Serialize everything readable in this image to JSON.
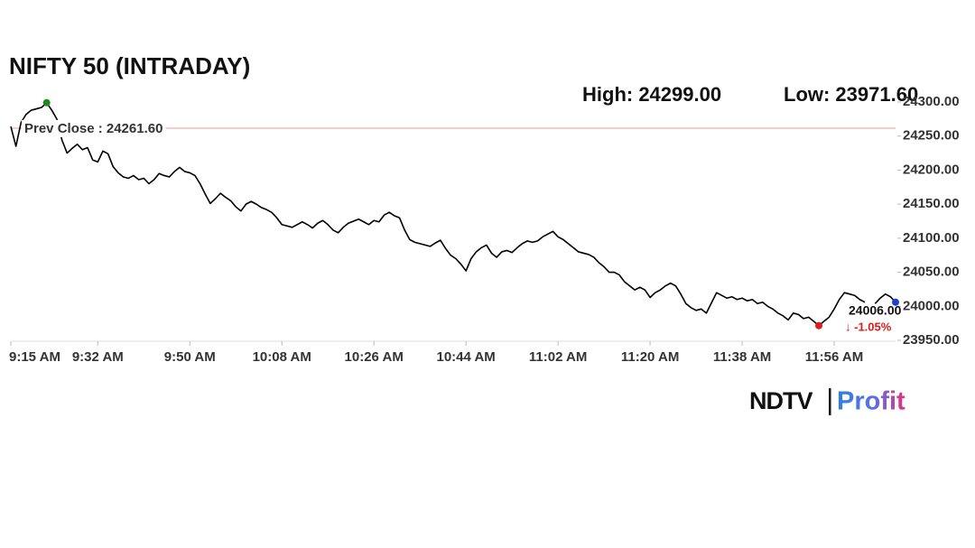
{
  "chart_data": {
    "type": "line",
    "title": "NIFTY 50 (INTRADAY)",
    "high_text": "High: 24299.00",
    "low_text": "Low: 23971.60",
    "prev_close": {
      "value": 24261.6,
      "label": "Prev Close : 24261.60",
      "color": "#f19a9a"
    },
    "last_label": "24006.00",
    "change_label": "↓ -1.05%",
    "change_color": "#e01b1b",
    "high_color": "#1e8a1e",
    "low_color": "#e01b1b",
    "last_color": "#1f3fcf",
    "brand": {
      "left": "NDTV",
      "right": "Profit"
    },
    "categories": [
      "9:15 AM",
      null,
      null,
      null,
      null,
      null,
      null,
      null,
      null,
      null,
      null,
      null,
      null,
      null,
      null,
      null,
      null,
      "9:32 AM",
      null,
      null,
      null,
      null,
      null,
      null,
      null,
      null,
      null,
      null,
      null,
      null,
      null,
      null,
      null,
      null,
      null,
      "9:50 AM",
      null,
      null,
      null,
      null,
      null,
      null,
      null,
      null,
      null,
      null,
      null,
      null,
      null,
      null,
      null,
      null,
      null,
      "10:08 AM",
      null,
      null,
      null,
      null,
      null,
      null,
      null,
      null,
      null,
      null,
      null,
      null,
      null,
      null,
      null,
      null,
      null,
      "10:26 AM",
      null,
      null,
      null,
      null,
      null,
      null,
      null,
      null,
      null,
      null,
      null,
      null,
      null,
      null,
      null,
      null,
      null,
      "10:44 AM",
      null,
      null,
      null,
      null,
      null,
      null,
      null,
      null,
      null,
      null,
      null,
      null,
      null,
      null,
      null,
      null,
      null,
      "11:02 AM",
      null,
      null,
      null,
      null,
      null,
      null,
      null,
      null,
      null,
      null,
      null,
      null,
      null,
      null,
      null,
      null,
      null,
      "11:20 AM",
      null,
      null,
      null,
      null,
      null,
      null,
      null,
      null,
      null,
      null,
      null,
      null,
      null,
      null,
      null,
      null,
      null,
      "11:38 AM",
      null,
      null,
      null,
      null,
      null,
      null,
      null,
      null,
      null,
      null,
      null,
      null,
      null,
      null,
      null,
      null,
      null,
      "11:56 AM",
      null,
      null,
      null,
      null,
      null,
      null,
      null,
      null,
      null,
      null,
      null,
      null
    ],
    "series": [
      {
        "name": "NIFTY 50",
        "color": "#000000",
        "values": [
          24264,
          24235,
          24270,
          24282,
          24288,
          24290,
          24292,
          24299,
          24288,
          24275,
          24244,
          24225,
          24232,
          24238,
          24230,
          24233,
          24215,
          24212,
          24228,
          24224,
          24205,
          24196,
          24190,
          24188,
          24192,
          24186,
          24188,
          24180,
          24186,
          24195,
          24192,
          24190,
          24198,
          24204,
          24198,
          24196,
          24192,
          24180,
          24165,
          24151,
          24158,
          24166,
          24160,
          24155,
          24146,
          24140,
          24150,
          24154,
          24150,
          24145,
          24142,
          24138,
          24130,
          24120,
          24118,
          24116,
          24120,
          24124,
          24120,
          24115,
          24122,
          24126,
          24120,
          24112,
          24108,
          24116,
          24122,
          24125,
          24128,
          24124,
          24120,
          24126,
          24124,
          24134,
          24138,
          24133,
          24130,
          24112,
          24098,
          24094,
          24092,
          24090,
          24088,
          24093,
          24097,
          24085,
          24075,
          24070,
          24062,
          24052,
          24070,
          24080,
          24086,
          24090,
          24078,
          24072,
          24080,
          24082,
          24079,
          24086,
          24092,
          24096,
          24094,
          24096,
          24102,
          24106,
          24110,
          24102,
          24098,
          24092,
          24086,
          24080,
          24078,
          24076,
          24072,
          24064,
          24058,
          24050,
          24050,
          24046,
          24036,
          24030,
          24024,
          24028,
          24024,
          24013,
          24020,
          24024,
          24030,
          24034,
          24030,
          24018,
          24004,
          23998,
          23994,
          23996,
          23990,
          24005,
          24020,
          24016,
          24012,
          24014,
          24010,
          24012,
          24008,
          24010,
          24004,
          24006,
          24000,
          23996,
          23990,
          23986,
          23980,
          23990,
          23988,
          23982,
          23984,
          23978,
          23971.6,
          23978,
          23984,
          23996,
          24010,
          24020,
          24018,
          24016,
          24010,
          24006,
          null,
          24004,
          24012,
          24018,
          24014,
          24006
        ]
      }
    ],
    "ylim": [
      23950,
      24300
    ],
    "yticks": [
      {
        "value": 23950,
        "label": "23950.00"
      },
      {
        "value": 24000,
        "label": "24000.00"
      },
      {
        "value": 24050,
        "label": "24050.00"
      },
      {
        "value": 24100,
        "label": "24100.00"
      },
      {
        "value": 24150,
        "label": "24150.00"
      },
      {
        "value": 24200,
        "label": "24200.00"
      },
      {
        "value": 24250,
        "label": "24250.00"
      },
      {
        "value": 24300,
        "label": "24300.00"
      }
    ]
  }
}
